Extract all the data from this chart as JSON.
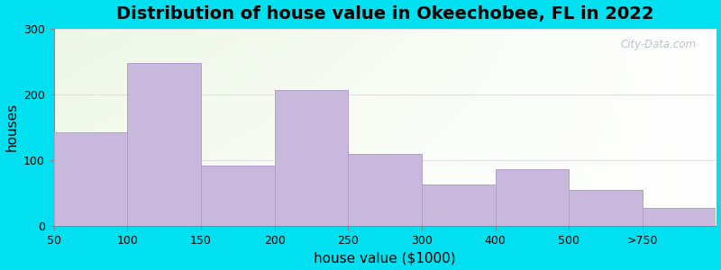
{
  "title": "Distribution of house value in Okeechobee, FL in 2022",
  "xlabel": "house value ($1000)",
  "ylabel": "houses",
  "tick_labels": [
    "50",
    "100",
    "150",
    "200",
    "250",
    "300",
    "400",
    "500",
    ">750"
  ],
  "values": [
    143,
    248,
    92,
    207,
    110,
    63,
    86,
    55,
    27
  ],
  "bar_color": "#c8b8dc",
  "bar_edgecolor": "#b0a0cc",
  "outer_bg": "#00e0f0",
  "ylim": [
    0,
    300
  ],
  "yticks": [
    0,
    100,
    200,
    300
  ],
  "title_fontsize": 14,
  "axis_label_fontsize": 11,
  "tick_fontsize": 9,
  "watermark_text": "City-Data.com"
}
